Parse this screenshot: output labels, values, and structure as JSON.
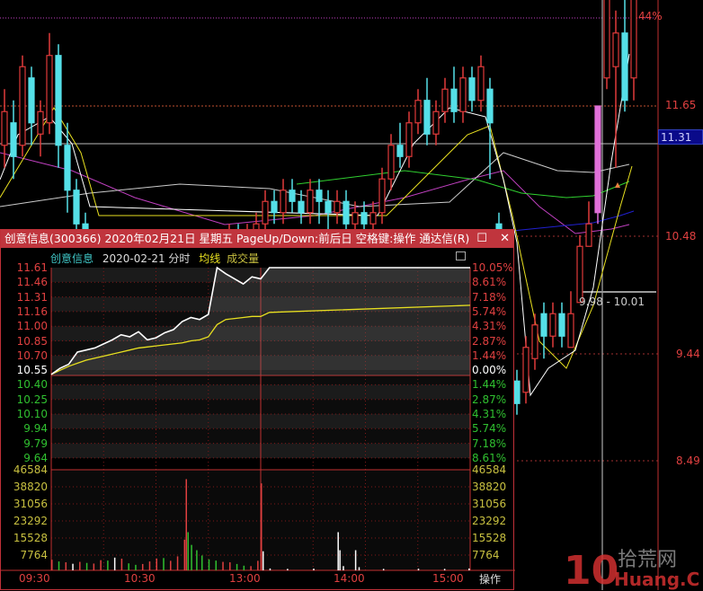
{
  "main_chart": {
    "right_axis": [
      "11.65",
      "10.48",
      "9.44",
      "8.49"
    ],
    "last_price": "11.31",
    "top_pct": "44%",
    "range_label": "9.98 - 10.01",
    "colors": {
      "up": "#e03a3a",
      "down": "#55e0e8",
      "limit": "#e070d8",
      "axis": "#e04040",
      "last_box": "#0a0a8a"
    },
    "candles": [
      [
        11.3,
        11.6,
        11.8,
        11.1
      ],
      [
        11.5,
        11.2,
        11.7,
        11.0
      ],
      [
        11.3,
        12.0,
        12.1,
        11.2
      ],
      [
        11.9,
        11.5,
        12.0,
        11.3
      ],
      [
        11.4,
        11.6,
        11.7,
        11.2
      ],
      [
        11.5,
        12.1,
        12.3,
        11.4
      ],
      [
        12.1,
        11.3,
        12.2,
        11.1
      ],
      [
        11.3,
        10.9,
        11.5,
        10.7
      ],
      [
        10.9,
        10.6,
        11.0,
        10.4
      ],
      [
        10.6,
        10.3,
        10.7,
        10.1
      ],
      [
        10.3,
        10.2,
        10.4,
        10.0
      ],
      [
        10.2,
        10.3,
        10.4,
        10.1
      ],
      [
        10.3,
        10.1,
        10.4,
        10.0
      ],
      [
        10.1,
        10.2,
        10.3,
        10.0
      ],
      [
        10.2,
        10.0,
        10.3,
        9.9
      ],
      [
        10.0,
        10.1,
        10.2,
        9.9
      ],
      [
        10.1,
        10.2,
        10.3,
        10.0
      ],
      [
        10.2,
        10.1,
        10.3,
        10.0
      ],
      [
        10.1,
        10.2,
        10.3,
        10.0
      ],
      [
        10.2,
        10.3,
        10.4,
        10.1
      ],
      [
        10.3,
        10.2,
        10.4,
        10.1
      ],
      [
        10.2,
        10.3,
        10.4,
        10.1
      ],
      [
        10.3,
        10.4,
        10.5,
        10.2
      ],
      [
        10.4,
        10.3,
        10.5,
        10.2
      ],
      [
        10.3,
        10.4,
        10.5,
        10.2
      ],
      [
        10.4,
        10.5,
        10.6,
        10.3
      ],
      [
        10.5,
        10.4,
        10.6,
        10.3
      ],
      [
        10.4,
        10.5,
        10.6,
        10.3
      ],
      [
        10.5,
        10.6,
        10.7,
        10.4
      ],
      [
        10.6,
        10.8,
        10.9,
        10.5
      ],
      [
        10.8,
        10.7,
        10.9,
        10.6
      ],
      [
        10.7,
        10.9,
        11.0,
        10.6
      ],
      [
        10.9,
        10.8,
        11.0,
        10.7
      ],
      [
        10.8,
        10.7,
        10.9,
        10.6
      ],
      [
        10.7,
        10.9,
        11.0,
        10.6
      ],
      [
        10.9,
        10.8,
        11.0,
        10.6
      ],
      [
        10.8,
        10.7,
        10.9,
        10.5
      ],
      [
        10.7,
        10.8,
        10.9,
        10.6
      ],
      [
        10.8,
        10.6,
        10.9,
        10.5
      ],
      [
        10.6,
        10.7,
        10.8,
        10.5
      ],
      [
        10.7,
        10.6,
        10.8,
        10.5
      ],
      [
        10.6,
        10.7,
        10.8,
        10.5
      ],
      [
        10.7,
        11.0,
        11.1,
        10.6
      ],
      [
        11.0,
        11.3,
        11.4,
        10.9
      ],
      [
        11.3,
        11.2,
        11.5,
        11.1
      ],
      [
        11.2,
        11.5,
        11.6,
        11.1
      ],
      [
        11.5,
        11.7,
        11.8,
        11.4
      ],
      [
        11.7,
        11.4,
        11.9,
        11.3
      ],
      [
        11.4,
        11.6,
        11.7,
        11.3
      ],
      [
        11.6,
        11.8,
        11.9,
        11.5
      ],
      [
        11.8,
        11.6,
        12.0,
        11.5
      ],
      [
        11.6,
        11.9,
        12.0,
        11.5
      ],
      [
        11.9,
        11.7,
        12.0,
        11.6
      ],
      [
        11.7,
        12.0,
        12.1,
        11.6
      ],
      [
        11.8,
        11.5,
        11.9,
        11.0
      ],
      [
        10.6,
        10.0,
        10.7,
        9.9
      ],
      [
        9.7,
        9.1,
        9.8,
        9.0
      ],
      [
        9.2,
        9.0,
        9.3,
        8.9
      ],
      [
        9.1,
        9.5,
        9.6,
        9.0
      ],
      [
        9.4,
        9.7,
        9.8,
        9.3
      ],
      [
        9.8,
        9.6,
        9.9,
        9.4
      ],
      [
        9.6,
        9.8,
        9.9,
        9.5
      ],
      [
        9.8,
        9.6,
        9.9,
        9.5
      ],
      [
        9.5,
        9.8,
        10.0,
        9.5
      ],
      [
        9.9,
        10.4,
        10.5,
        9.9
      ],
      [
        10.4,
        10.6,
        10.8,
        10.4
      ],
      [
        10.7,
        11.65,
        11.65,
        10.6
      ],
      [
        11.9,
        12.6,
        12.8,
        11.8
      ],
      [
        12.0,
        12.3,
        12.5,
        11.1
      ],
      [
        12.3,
        11.7,
        12.8,
        11.6
      ],
      [
        11.9,
        12.8,
        12.9,
        11.7
      ]
    ]
  },
  "popup": {
    "title": "创意信息(300366) 2020年02月21日 星期五 PageUp/Down:前后日 空格键:操作 通达信(R)",
    "restore_icon": "☐",
    "close_icon": "✕",
    "stock_name": "创意信息",
    "date_label": "2020-02-21 分时",
    "avg_label": "均线",
    "vol_label": "成交量",
    "price_labels": [
      "11.61",
      "11.46",
      "11.31",
      "11.16",
      "11.00",
      "10.85",
      "10.70",
      "10.55",
      "10.40",
      "10.25",
      "10.10",
      "9.94",
      "9.79",
      "9.64"
    ],
    "pct_labels": [
      "10.05%",
      "8.61%",
      "7.18%",
      "5.74%",
      "4.31%",
      "2.87%",
      "1.44%",
      "0.00%",
      "1.44%",
      "2.87%",
      "4.31%",
      "5.74%",
      "7.18%",
      "8.61%"
    ],
    "vol_labels": [
      "46584",
      "38820",
      "31056",
      "23292",
      "15528",
      "7764"
    ],
    "time_labels": [
      "09:30",
      "10:30",
      "13:00",
      "14:00",
      "15:00"
    ],
    "op_label": "操作",
    "colors": {
      "up": "#e04040",
      "down": "#30c030",
      "flat": "#ffffff",
      "vol_axis": "#c8c040",
      "price_line": "#ffffff",
      "avg_line": "#e8e020",
      "title_bar": "#c0353d"
    },
    "chart_data": {
      "type": "line",
      "prev_close": 10.55,
      "ylim": [
        9.64,
        11.61
      ],
      "minutes": [
        0,
        5,
        10,
        15,
        20,
        25,
        30,
        35,
        40,
        45,
        50,
        55,
        60,
        65,
        70,
        75,
        80,
        85,
        90,
        95,
        100,
        105,
        110,
        115,
        120,
        125,
        240
      ],
      "price": [
        10.56,
        10.62,
        10.66,
        10.78,
        10.8,
        10.82,
        10.86,
        10.9,
        10.95,
        10.93,
        10.98,
        10.9,
        10.92,
        10.97,
        11.0,
        11.08,
        11.12,
        11.1,
        11.15,
        11.61,
        11.55,
        11.5,
        11.45,
        11.52,
        11.5,
        11.61,
        11.61
      ],
      "avg": [
        10.56,
        10.6,
        10.64,
        10.67,
        10.7,
        10.72,
        10.74,
        10.76,
        10.78,
        10.8,
        10.82,
        10.83,
        10.84,
        10.85,
        10.86,
        10.87,
        10.89,
        10.9,
        10.93,
        11.05,
        11.1,
        11.11,
        11.12,
        11.13,
        11.13,
        11.17,
        11.24
      ],
      "volume_max": 46584,
      "volume": [
        {
          "m": 0,
          "v": 5000,
          "c": "up"
        },
        {
          "m": 4,
          "v": 4200,
          "c": "down"
        },
        {
          "m": 8,
          "v": 3800,
          "c": "up"
        },
        {
          "m": 12,
          "v": 3100,
          "c": "flat"
        },
        {
          "m": 16,
          "v": 4000,
          "c": "up"
        },
        {
          "m": 20,
          "v": 3500,
          "c": "down"
        },
        {
          "m": 24,
          "v": 3200,
          "c": "up"
        },
        {
          "m": 28,
          "v": 4800,
          "c": "up"
        },
        {
          "m": 32,
          "v": 4600,
          "c": "down"
        },
        {
          "m": 36,
          "v": 6000,
          "c": "flat"
        },
        {
          "m": 40,
          "v": 5500,
          "c": "up"
        },
        {
          "m": 44,
          "v": 3300,
          "c": "down"
        },
        {
          "m": 48,
          "v": 2600,
          "c": "down"
        },
        {
          "m": 52,
          "v": 3000,
          "c": "up"
        },
        {
          "m": 56,
          "v": 4200,
          "c": "up"
        },
        {
          "m": 60,
          "v": 5600,
          "c": "up"
        },
        {
          "m": 64,
          "v": 5800,
          "c": "down"
        },
        {
          "m": 68,
          "v": 4500,
          "c": "up"
        },
        {
          "m": 72,
          "v": 6600,
          "c": "up"
        },
        {
          "m": 76,
          "v": 14500,
          "c": "up"
        },
        {
          "m": 77,
          "v": 43000,
          "c": "up"
        },
        {
          "m": 78,
          "v": 18000,
          "c": "down"
        },
        {
          "m": 80,
          "v": 12000,
          "c": "down"
        },
        {
          "m": 83,
          "v": 9500,
          "c": "down"
        },
        {
          "m": 86,
          "v": 7000,
          "c": "down"
        },
        {
          "m": 90,
          "v": 5200,
          "c": "down"
        },
        {
          "m": 94,
          "v": 4600,
          "c": "down"
        },
        {
          "m": 98,
          "v": 4000,
          "c": "up"
        },
        {
          "m": 102,
          "v": 3800,
          "c": "up"
        },
        {
          "m": 106,
          "v": 3000,
          "c": "down"
        },
        {
          "m": 110,
          "v": 2200,
          "c": "down"
        },
        {
          "m": 114,
          "v": 2000,
          "c": "up"
        },
        {
          "m": 118,
          "v": 4500,
          "c": "up"
        },
        {
          "m": 120,
          "v": 41000,
          "c": "up"
        },
        {
          "m": 121,
          "v": 9000,
          "c": "flat"
        },
        {
          "m": 125,
          "v": 900,
          "c": "flat"
        },
        {
          "m": 135,
          "v": 700,
          "c": "flat"
        },
        {
          "m": 150,
          "v": 800,
          "c": "flat"
        },
        {
          "m": 164,
          "v": 18000,
          "c": "flat"
        },
        {
          "m": 165,
          "v": 9500,
          "c": "flat"
        },
        {
          "m": 167,
          "v": 2000,
          "c": "flat"
        },
        {
          "m": 174,
          "v": 9500,
          "c": "flat"
        },
        {
          "m": 176,
          "v": 1500,
          "c": "flat"
        },
        {
          "m": 190,
          "v": 700,
          "c": "flat"
        },
        {
          "m": 210,
          "v": 800,
          "c": "flat"
        },
        {
          "m": 225,
          "v": 700,
          "c": "flat"
        },
        {
          "m": 239,
          "v": 900,
          "c": "flat"
        }
      ]
    }
  },
  "watermark": {
    "text1": "10",
    "text2": "拾荒网",
    "text3": "Huang.CN"
  }
}
